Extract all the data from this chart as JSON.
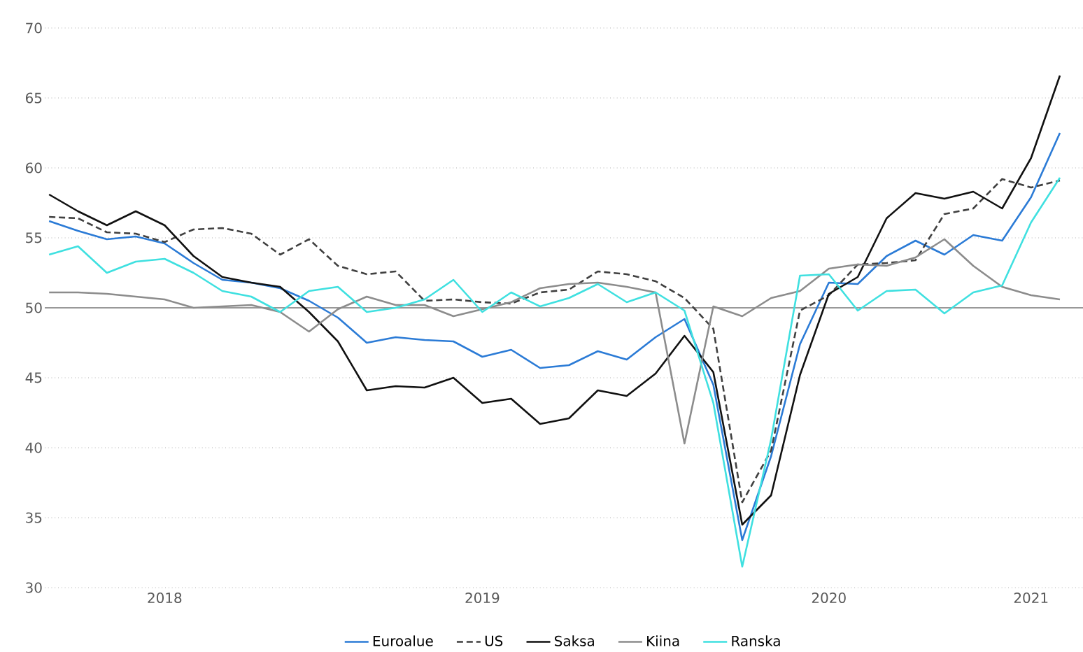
{
  "chart_data": {
    "type": "line",
    "categories": [
      null,
      null,
      null,
      null,
      "2018",
      null,
      null,
      null,
      null,
      null,
      null,
      null,
      null,
      null,
      null,
      "2019",
      null,
      null,
      null,
      null,
      null,
      null,
      null,
      null,
      null,
      null,
      null,
      "2020",
      null,
      null,
      null,
      null,
      null,
      null,
      "2021",
      null
    ],
    "series": [
      {
        "name": "Euroalue",
        "color": "#2b7bd6",
        "values": [
          56.2,
          55.5,
          54.9,
          55.1,
          54.6,
          53.2,
          52.0,
          51.8,
          51.4,
          50.5,
          49.3,
          47.5,
          47.9,
          47.7,
          47.6,
          46.5,
          47.0,
          45.7,
          45.9,
          46.9,
          46.3,
          47.9,
          49.2,
          44.5,
          33.4,
          39.4,
          47.4,
          51.8,
          51.7,
          53.7,
          54.8,
          53.8,
          55.2,
          54.8,
          57.9,
          62.5
        ]
      },
      {
        "name": "US",
        "color": "#404040",
        "line_style": "dashed",
        "values": [
          56.5,
          56.4,
          55.4,
          55.3,
          54.7,
          55.6,
          55.7,
          55.3,
          53.8,
          54.9,
          53.0,
          52.4,
          52.6,
          50.5,
          50.6,
          50.4,
          50.3,
          51.1,
          51.3,
          52.6,
          52.4,
          51.9,
          50.7,
          48.5,
          36.1,
          39.8,
          49.8,
          50.9,
          53.1,
          53.2,
          53.4,
          56.7,
          57.1,
          59.2,
          58.6,
          59.1
        ]
      },
      {
        "name": "Saksa",
        "color": "#111111",
        "values": [
          58.1,
          56.9,
          55.9,
          56.9,
          55.9,
          53.7,
          52.2,
          51.8,
          51.5,
          49.7,
          47.6,
          44.1,
          44.4,
          44.3,
          45.0,
          43.2,
          43.5,
          41.7,
          42.1,
          44.1,
          43.7,
          45.3,
          48.0,
          45.4,
          34.5,
          36.6,
          45.2,
          51.0,
          52.2,
          56.4,
          58.2,
          57.8,
          58.3,
          57.1,
          60.7,
          66.6
        ]
      },
      {
        "name": "Kiina",
        "color": "#8c8c8c",
        "values": [
          51.1,
          51.1,
          51.0,
          50.8,
          50.6,
          50.0,
          50.1,
          50.2,
          49.7,
          48.3,
          49.9,
          50.8,
          50.2,
          50.2,
          49.4,
          49.9,
          50.4,
          51.4,
          51.7,
          51.8,
          51.5,
          51.1,
          40.3,
          50.1,
          49.4,
          50.7,
          51.2,
          52.8,
          53.1,
          53.0,
          53.6,
          54.9,
          53.0,
          51.5,
          50.9,
          50.6
        ]
      },
      {
        "name": "Ranska",
        "color": "#3fe0e0",
        "values": [
          53.8,
          54.4,
          52.5,
          53.3,
          53.5,
          52.5,
          51.2,
          50.8,
          49.7,
          51.2,
          51.5,
          49.7,
          50.0,
          50.6,
          52.0,
          49.7,
          51.1,
          50.1,
          50.7,
          51.7,
          50.4,
          51.1,
          49.8,
          43.2,
          31.5,
          40.6,
          52.3,
          52.4,
          49.8,
          51.2,
          51.3,
          49.6,
          51.1,
          51.6,
          56.1,
          59.3
        ]
      }
    ],
    "ylim": [
      30,
      70
    ],
    "yticks": [
      30,
      35,
      40,
      45,
      50,
      55,
      60,
      65,
      70
    ],
    "grid": "y",
    "legend": "bottom",
    "marker": "none",
    "line_style": "solid",
    "ref_lines": [
      {
        "axis": "y",
        "value": 50,
        "color": "#999999"
      }
    ]
  }
}
